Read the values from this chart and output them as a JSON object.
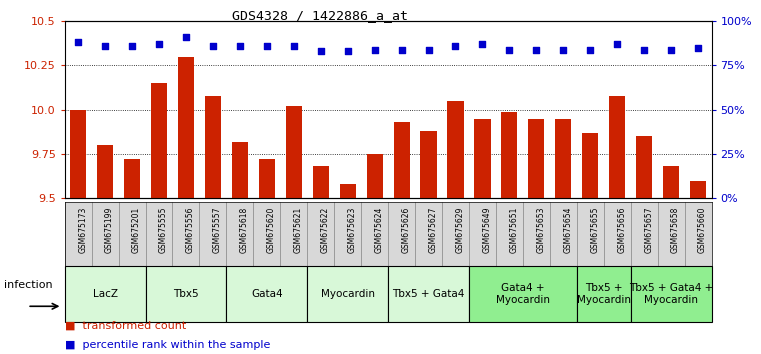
{
  "title": "GDS4328 / 1422886_a_at",
  "samples": [
    "GSM675173",
    "GSM675199",
    "GSM675201",
    "GSM675555",
    "GSM675556",
    "GSM675557",
    "GSM675618",
    "GSM675620",
    "GSM675621",
    "GSM675622",
    "GSM675623",
    "GSM675624",
    "GSM675626",
    "GSM675627",
    "GSM675629",
    "GSM675649",
    "GSM675651",
    "GSM675653",
    "GSM675654",
    "GSM675655",
    "GSM675656",
    "GSM675657",
    "GSM675658",
    "GSM675660"
  ],
  "transformed_count": [
    10.0,
    9.8,
    9.72,
    10.15,
    10.3,
    10.08,
    9.82,
    9.72,
    10.02,
    9.68,
    9.58,
    9.75,
    9.93,
    9.88,
    10.05,
    9.95,
    9.99,
    9.95,
    9.95,
    9.87,
    10.08,
    9.85,
    9.68,
    9.6
  ],
  "percentile": [
    88,
    86,
    86,
    87,
    91,
    86,
    86,
    86,
    86,
    83,
    83,
    84,
    84,
    84,
    86,
    87,
    84,
    84,
    84,
    84,
    87,
    84,
    84,
    85
  ],
  "groups": [
    {
      "label": "LacZ",
      "start": 0,
      "end": 3,
      "color": "#d8f8d8"
    },
    {
      "label": "Tbx5",
      "start": 3,
      "end": 6,
      "color": "#d8f8d8"
    },
    {
      "label": "Gata4",
      "start": 6,
      "end": 9,
      "color": "#d8f8d8"
    },
    {
      "label": "Myocardin",
      "start": 9,
      "end": 12,
      "color": "#d8f8d8"
    },
    {
      "label": "Tbx5 + Gata4",
      "start": 12,
      "end": 15,
      "color": "#d8f8d8"
    },
    {
      "label": "Gata4 +\nMyocardin",
      "start": 15,
      "end": 19,
      "color": "#90ee90"
    },
    {
      "label": "Tbx5 +\nMyocardin",
      "start": 19,
      "end": 21,
      "color": "#90ee90"
    },
    {
      "label": "Tbx5 + Gata4 +\nMyocardin",
      "start": 21,
      "end": 24,
      "color": "#90ee90"
    }
  ],
  "ylim": [
    9.5,
    10.5
  ],
  "yticks": [
    9.5,
    9.75,
    10.0,
    10.25,
    10.5
  ],
  "bar_color": "#cc2200",
  "scatter_color": "#0000cc",
  "background_color": "#ffffff",
  "right_yticks": [
    0,
    25,
    50,
    75,
    100
  ],
  "label_bg_color": "#d8d8d8"
}
